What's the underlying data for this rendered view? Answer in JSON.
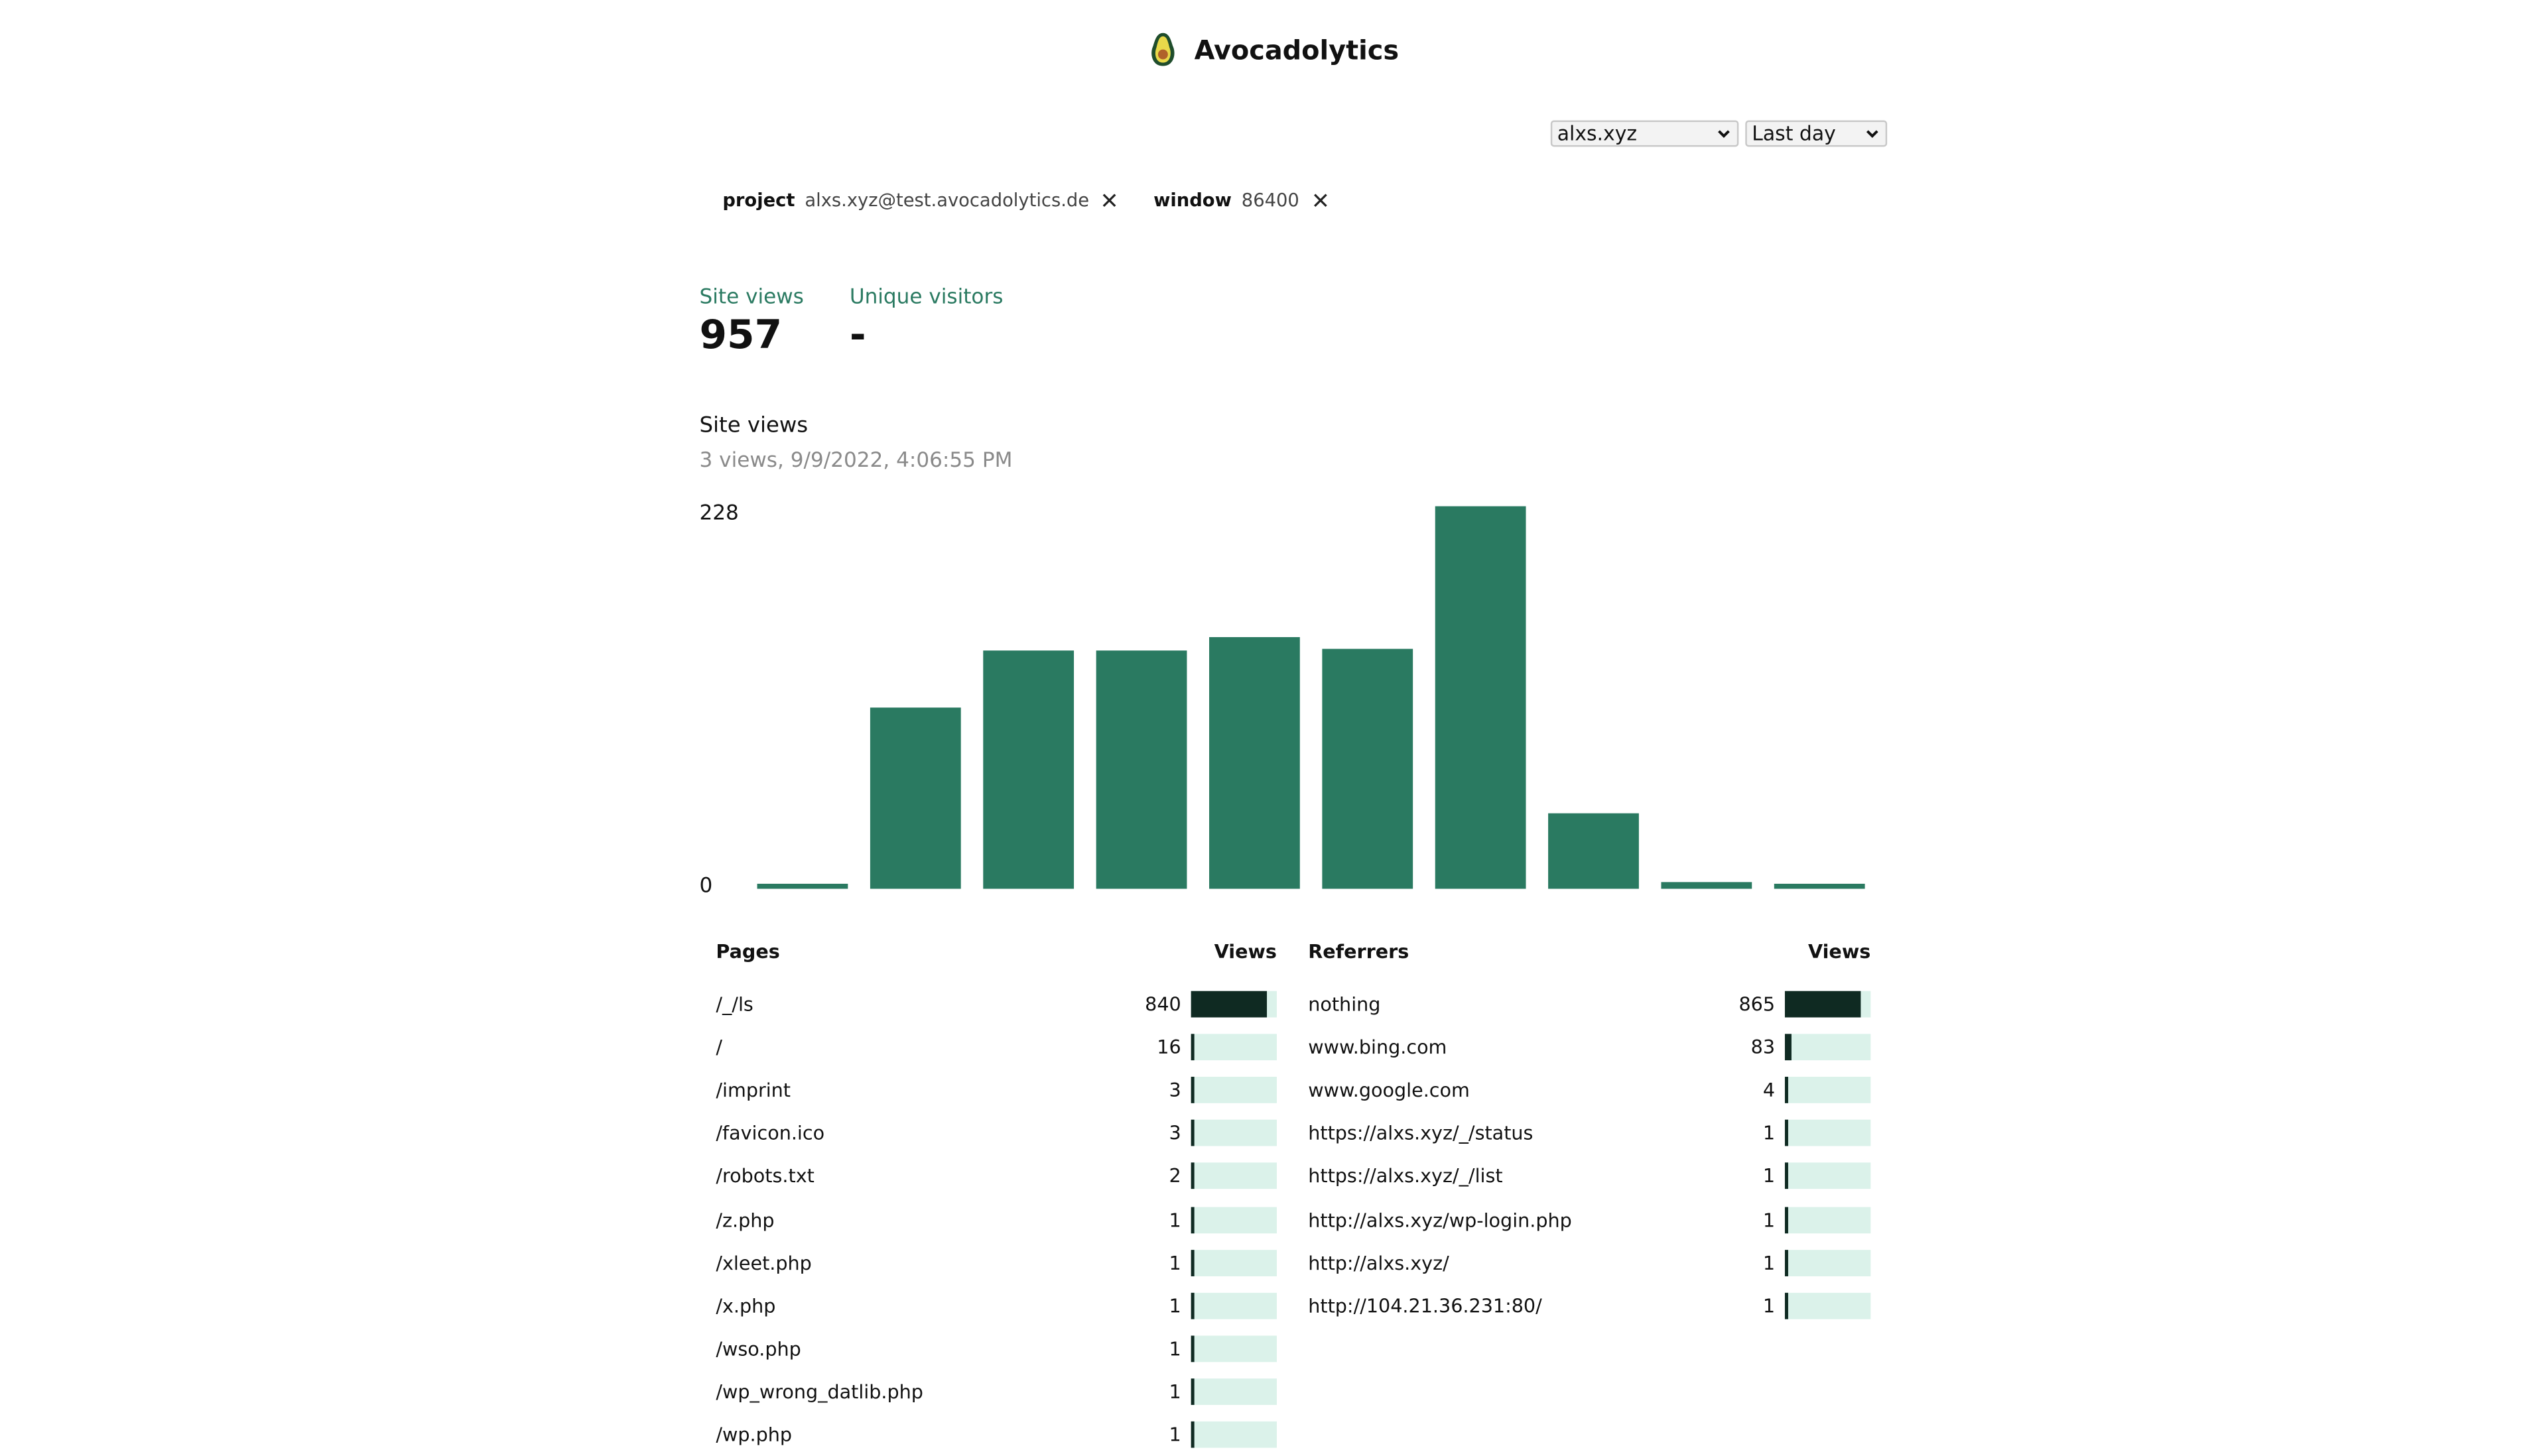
{
  "app": {
    "name": "Avocadolytics"
  },
  "controls": {
    "site_select": "alxs.xyz",
    "window_select": "Last day"
  },
  "filters": [
    {
      "key": "project",
      "value": "alxs.xyz@test.avocadolytics.de"
    },
    {
      "key": "window",
      "value": "86400"
    }
  ],
  "stats": {
    "site_views_label": "Site views",
    "site_views_value": "957",
    "unique_visitors_label": "Unique visitors",
    "unique_visitors_value": "-"
  },
  "chart_section": {
    "title": "Site views",
    "subtitle": "3 views, 9/9/2022, 4:06:55 PM"
  },
  "chart_data": {
    "type": "bar",
    "title": "Site views",
    "values": [
      3,
      108,
      142,
      142,
      150,
      143,
      228,
      45,
      4,
      3
    ],
    "ylim": [
      0,
      228
    ],
    "ytick_labels": [
      "0",
      "228"
    ],
    "bar_color": "#2a7a61",
    "grid": false
  },
  "pages": {
    "header_label": "Pages",
    "header_views": "Views",
    "max": 840,
    "rows": [
      {
        "label": "/_/ls",
        "count": "840",
        "value": 840
      },
      {
        "label": "/",
        "count": "16",
        "value": 16
      },
      {
        "label": "/imprint",
        "count": "3",
        "value": 3
      },
      {
        "label": "/favicon.ico",
        "count": "3",
        "value": 3
      },
      {
        "label": "/robots.txt",
        "count": "2",
        "value": 2
      },
      {
        "label": "/z.php",
        "count": "1",
        "value": 1
      },
      {
        "label": "/xleet.php",
        "count": "1",
        "value": 1
      },
      {
        "label": "/x.php",
        "count": "1",
        "value": 1
      },
      {
        "label": "/wso.php",
        "count": "1",
        "value": 1
      },
      {
        "label": "/wp_wrong_datlib.php",
        "count": "1",
        "value": 1
      },
      {
        "label": "/wp.php",
        "count": "1",
        "value": 1
      }
    ]
  },
  "referrers": {
    "header_label": "Referrers",
    "header_views": "Views",
    "max": 865,
    "rows": [
      {
        "label": "nothing",
        "count": "865",
        "value": 865
      },
      {
        "label": "www.bing.com",
        "count": "83",
        "value": 83
      },
      {
        "label": "www.google.com",
        "count": "4",
        "value": 4
      },
      {
        "label": "https://alxs.xyz/_/status",
        "count": "1",
        "value": 1
      },
      {
        "label": "https://alxs.xyz/_/list",
        "count": "1",
        "value": 1
      },
      {
        "label": "http://alxs.xyz/wp-login.php",
        "count": "1",
        "value": 1
      },
      {
        "label": "http://alxs.xyz/",
        "count": "1",
        "value": 1
      },
      {
        "label": "http://104.21.36.231:80/",
        "count": "1",
        "value": 1
      }
    ]
  },
  "colors": {
    "accent": "#2a7a61",
    "bar_dark": "#0f2a22",
    "bar_track": "#dbf2ea"
  },
  "icons": {
    "logo": "avocado-logo-icon",
    "dropdown": "chevron-down-icon",
    "remove_filter": "close-icon"
  }
}
